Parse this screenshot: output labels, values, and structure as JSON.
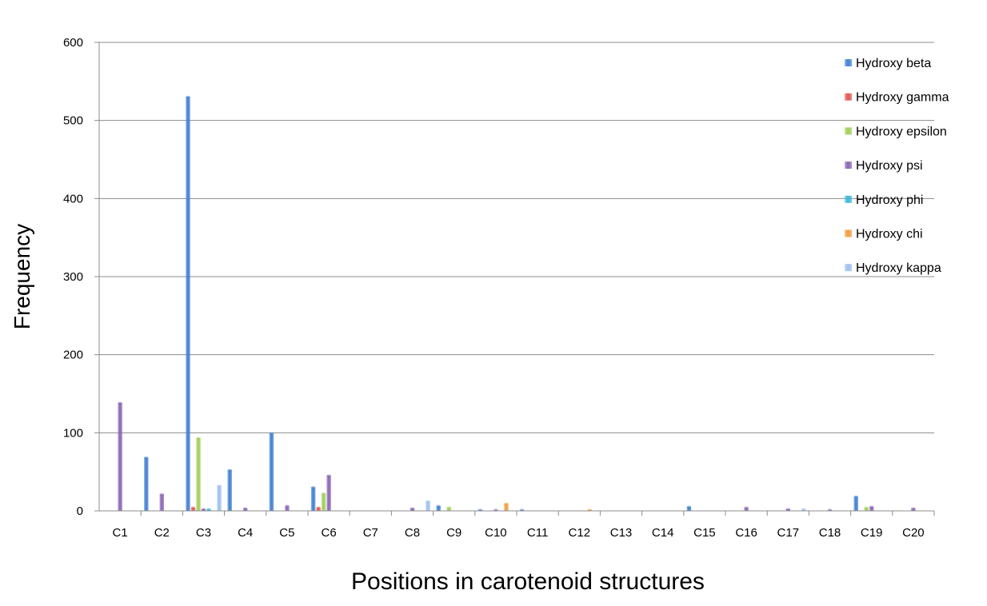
{
  "chart_data": {
    "type": "bar",
    "title": "",
    "xlabel": "Positions in carotenoid structures",
    "ylabel": "Frequency",
    "ylim": [
      0,
      600
    ],
    "yticks": [
      0,
      100,
      200,
      300,
      400,
      500,
      600
    ],
    "grid": true,
    "legend_position": "right",
    "categories": [
      "C1",
      "C2",
      "C3",
      "C4",
      "C5",
      "C6",
      "C7",
      "C8",
      "C9",
      "C10",
      "C11",
      "C12",
      "C13",
      "C14",
      "C15",
      "C16",
      "C17",
      "C18",
      "C19",
      "C20"
    ],
    "series": [
      {
        "name": "Hydroxy beta",
        "color": "#3f7fcf",
        "values": [
          0,
          68,
          530,
          52,
          99,
          30,
          0,
          0,
          6,
          1,
          1,
          0,
          0,
          0,
          5,
          0,
          0,
          0,
          18,
          0
        ]
      },
      {
        "name": "Hydroxy gamma",
        "color": "#e05550",
        "values": [
          0,
          0,
          4,
          0,
          0,
          4,
          0,
          0,
          0,
          0,
          0,
          0,
          0,
          0,
          0,
          0,
          0,
          0,
          0,
          0
        ]
      },
      {
        "name": "Hydroxy epsilon",
        "color": "#9fcf55",
        "values": [
          0,
          0,
          93,
          0,
          0,
          22,
          0,
          0,
          4,
          0,
          0,
          0,
          0,
          0,
          0,
          0,
          0,
          0,
          4,
          0
        ]
      },
      {
        "name": "Hydroxy psi",
        "color": "#8a64b4",
        "values": [
          138,
          21,
          2,
          3,
          6,
          45,
          0,
          3,
          0,
          1,
          0,
          0,
          0,
          0,
          0,
          4,
          2,
          1,
          5,
          3
        ]
      },
      {
        "name": "Hydroxy phi",
        "color": "#38b8d8",
        "values": [
          0,
          0,
          2,
          0,
          0,
          0,
          0,
          0,
          0,
          0,
          0,
          0,
          0,
          0,
          0,
          0,
          0,
          0,
          0,
          0
        ]
      },
      {
        "name": "Hydroxy chi",
        "color": "#f09a3a",
        "values": [
          0,
          0,
          0,
          0,
          0,
          0,
          0,
          0,
          0,
          9,
          0,
          1,
          0,
          0,
          0,
          0,
          0,
          0,
          0,
          0
        ]
      },
      {
        "name": "Hydroxy kappa",
        "color": "#9cbff0",
        "values": [
          0,
          0,
          32,
          0,
          0,
          0,
          0,
          12,
          0,
          0,
          0,
          0,
          0,
          0,
          0,
          0,
          2,
          0,
          0,
          0
        ]
      }
    ]
  }
}
